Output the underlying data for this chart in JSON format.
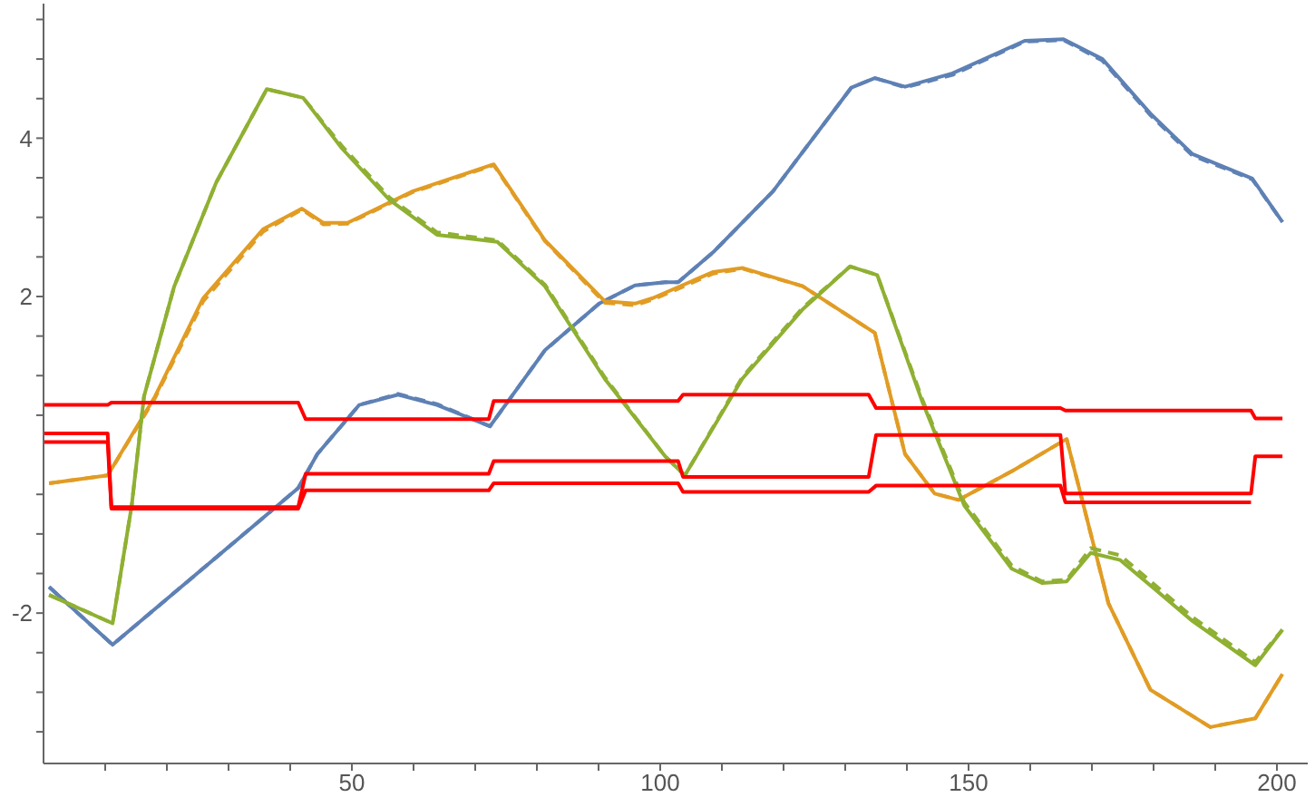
{
  "chart_data": {
    "type": "line",
    "xlim": [
      0,
      205
    ],
    "ylim": [
      -3.9,
      5.7
    ],
    "xticks": [
      {
        "value": 10,
        "label": null
      },
      {
        "value": 20,
        "label": null
      },
      {
        "value": 30,
        "label": null
      },
      {
        "value": 40,
        "label": null
      },
      50,
      {
        "value": 60,
        "label": null
      },
      {
        "value": 70,
        "label": null
      },
      {
        "value": 80,
        "label": null
      },
      {
        "value": 90,
        "label": null
      },
      100,
      {
        "value": 110,
        "label": null
      },
      {
        "value": 120,
        "label": null
      },
      {
        "value": 130,
        "label": null
      },
      {
        "value": 140,
        "label": null
      },
      150,
      {
        "value": 160,
        "label": null
      },
      {
        "value": 170,
        "label": null
      },
      {
        "value": 180,
        "label": null
      },
      {
        "value": 190,
        "label": null
      },
      200
    ],
    "yticks": [
      {
        "value": -3.5,
        "label": null
      },
      {
        "value": -3,
        "label": null
      },
      {
        "value": -2.5,
        "label": null
      },
      -2,
      {
        "value": -1.5,
        "label": null
      },
      {
        "value": -1,
        "label": null
      },
      {
        "value": -0.5,
        "label": null
      },
      {
        "value": 0.5,
        "label": null
      },
      {
        "value": 1,
        "label": null
      },
      {
        "value": 1.5,
        "label": null
      },
      2,
      {
        "value": 2.5,
        "label": null
      },
      {
        "value": 3,
        "label": null
      },
      {
        "value": 3.5,
        "label": null
      },
      4,
      {
        "value": 4.5,
        "label": null
      },
      {
        "value": 5,
        "label": null
      },
      {
        "value": 5.5,
        "label": null
      }
    ],
    "grid": false,
    "marker": "none",
    "series": [
      {
        "color": "#5e81b5",
        "line_style": "solid",
        "x": [
          0.9,
          11.2,
          35.7,
          41.3,
          44.4,
          51.2,
          57.5,
          63.8,
          72.4,
          81.3,
          90.1,
          95.9,
          100.8,
          102.9,
          108.6,
          118.3,
          131,
          134.8,
          139.7,
          147.4,
          159.1,
          165.4,
          171.7,
          179.5,
          186.3,
          196,
          200.9
        ],
        "values": [
          -1.67,
          -2.4,
          -0.79,
          -0.42,
          0.01,
          0.63,
          0.76,
          0.63,
          0.36,
          1.32,
          1.91,
          2.14,
          2.18,
          2.18,
          2.56,
          3.33,
          4.64,
          4.76,
          4.65,
          4.82,
          5.23,
          5.25,
          5.0,
          4.31,
          3.8,
          3.49,
          2.94
        ]
      },
      {
        "color": "#5e81b5",
        "line_style": "dashed",
        "x": [
          0.9,
          11.2,
          35.7,
          41.3,
          44.4,
          51.2,
          57.5,
          63.8,
          72.4,
          81.3,
          90.1,
          95.9,
          100.8,
          102.9,
          108.6,
          118.3,
          131,
          134.8,
          139.7,
          147.4,
          159.1,
          165.4,
          171.7,
          179.5,
          186.3,
          196,
          200.9
        ],
        "values": [
          -1.67,
          -2.4,
          -0.79,
          -0.42,
          0.01,
          0.63,
          0.77,
          0.64,
          0.36,
          1.32,
          1.91,
          2.14,
          2.18,
          2.18,
          2.56,
          3.33,
          4.64,
          4.76,
          4.64,
          4.8,
          5.22,
          5.24,
          4.98,
          4.29,
          3.78,
          3.48,
          2.94
        ]
      },
      {
        "color": "#e19c24",
        "line_style": "solid",
        "x": [
          0.9,
          10.4,
          18.1,
          25.9,
          35.6,
          41.9,
          45.4,
          49.3,
          59.9,
          73,
          81.3,
          91,
          95.9,
          98.8,
          108.6,
          113.4,
          123.1,
          134.8,
          139.7,
          144.5,
          148.4,
          157.2,
          165.9,
          172.7,
          179.5,
          189.2,
          196.5,
          200.9
        ],
        "values": [
          -0.36,
          -0.26,
          0.74,
          1.98,
          2.85,
          3.11,
          2.93,
          2.93,
          3.33,
          3.67,
          2.71,
          1.94,
          1.91,
          1.98,
          2.31,
          2.36,
          2.13,
          1.54,
          0.01,
          -0.49,
          -0.57,
          -0.2,
          0.2,
          -1.88,
          -2.97,
          -3.44,
          -3.33,
          -2.77
        ]
      },
      {
        "color": "#e19c24",
        "line_style": "dashed",
        "x": [
          0.9,
          10.4,
          18.1,
          25.9,
          35.6,
          41.9,
          45.4,
          49.3,
          59.9,
          73,
          81.3,
          91,
          95.9,
          98.8,
          108.6,
          113.4,
          123.1,
          134.8,
          139.7,
          144.5,
          148.4,
          157.2,
          165.9,
          172.7,
          179.5,
          189.2,
          196.5,
          200.9
        ],
        "values": [
          -0.36,
          -0.26,
          0.72,
          1.94,
          2.82,
          3.1,
          2.91,
          2.92,
          3.32,
          3.66,
          2.7,
          1.92,
          1.89,
          1.96,
          2.29,
          2.35,
          2.13,
          1.54,
          0.01,
          -0.49,
          -0.57,
          -0.2,
          0.2,
          -1.88,
          -2.97,
          -3.44,
          -3.33,
          -2.77
        ]
      },
      {
        "color": "#8fb032",
        "line_style": "solid",
        "x": [
          0.9,
          11.2,
          14.3,
          16.3,
          21.2,
          28,
          36.2,
          42.1,
          48.4,
          56.1,
          63.8,
          73.6,
          81.3,
          91,
          100.8,
          104,
          113.3,
          123,
          130.8,
          135.2,
          142.5,
          149.3,
          157,
          161.9,
          165.9,
          169.8,
          174.6,
          186.3,
          196.5,
          200.9
        ],
        "values": [
          -1.77,
          -2.13,
          -0.64,
          0.74,
          2.13,
          3.44,
          4.62,
          4.51,
          3.87,
          3.22,
          2.78,
          2.69,
          2.13,
          0.96,
          -0.02,
          -0.26,
          0.96,
          1.83,
          2.38,
          2.27,
          0.67,
          -0.64,
          -1.44,
          -1.62,
          -1.6,
          -1.24,
          -1.33,
          -2.1,
          -2.66,
          -2.21
        ]
      },
      {
        "color": "#8fb032",
        "line_style": "dashed",
        "x": [
          0.9,
          11.2,
          14.3,
          16.3,
          21.2,
          28,
          36.2,
          42.1,
          48.4,
          56.1,
          63.8,
          73.6,
          81.3,
          91,
          100.8,
          104,
          113.3,
          123,
          130.8,
          135.2,
          142.5,
          149.3,
          157,
          161.9,
          165.9,
          169.8,
          174.6,
          186.3,
          196.5,
          200.9
        ],
        "values": [
          -1.77,
          -2.13,
          -0.64,
          0.74,
          2.13,
          3.44,
          4.62,
          4.51,
          3.9,
          3.25,
          2.81,
          2.71,
          2.15,
          0.98,
          -0.02,
          -0.26,
          0.98,
          1.85,
          2.38,
          2.27,
          0.7,
          -0.6,
          -1.4,
          -1.6,
          -1.58,
          -1.18,
          -1.27,
          -2.05,
          -2.62,
          -2.21
        ]
      },
      {
        "color": "#ff0000",
        "line_style": "solid",
        "x": [
          0,
          10.4,
          11,
          41.3,
          42.5,
          72.2,
          73,
          102.9,
          103.7,
          133.8,
          135,
          164.9,
          165.7,
          195.8,
          196.5,
          200.9
        ],
        "values": [
          0.63,
          0.63,
          0.66,
          0.66,
          0.45,
          0.45,
          0.68,
          0.68,
          0.76,
          0.76,
          0.59,
          0.59,
          0.56,
          0.56,
          0.46,
          0.46
        ]
      },
      {
        "color": "#ff0000",
        "line_style": "solid",
        "x": [
          0,
          10.4,
          11,
          41.3,
          42.5,
          72.2,
          73,
          102.9,
          103.7,
          133.8,
          135,
          164.9,
          165.7,
          195.8,
          196.5,
          200.9
        ],
        "values": [
          0.27,
          0.27,
          -0.66,
          -0.66,
          -0.24,
          -0.24,
          -0.08,
          -0.08,
          -0.28,
          -0.28,
          0.25,
          0.25,
          -0.49,
          -0.49,
          -0.02,
          -0.02
        ]
      },
      {
        "color": "#ff0000",
        "line_style": "solid",
        "x": [
          0,
          10.4,
          11,
          41.3,
          42.5,
          72.2,
          73,
          102.9,
          103.7,
          133.8,
          135,
          164.9,
          165.7,
          195.8
        ],
        "values": [
          0.16,
          0.16,
          -0.68,
          -0.68,
          -0.45,
          -0.45,
          -0.36,
          -0.36,
          -0.47,
          -0.47,
          -0.39,
          -0.39,
          -0.6,
          -0.6
        ]
      }
    ]
  }
}
